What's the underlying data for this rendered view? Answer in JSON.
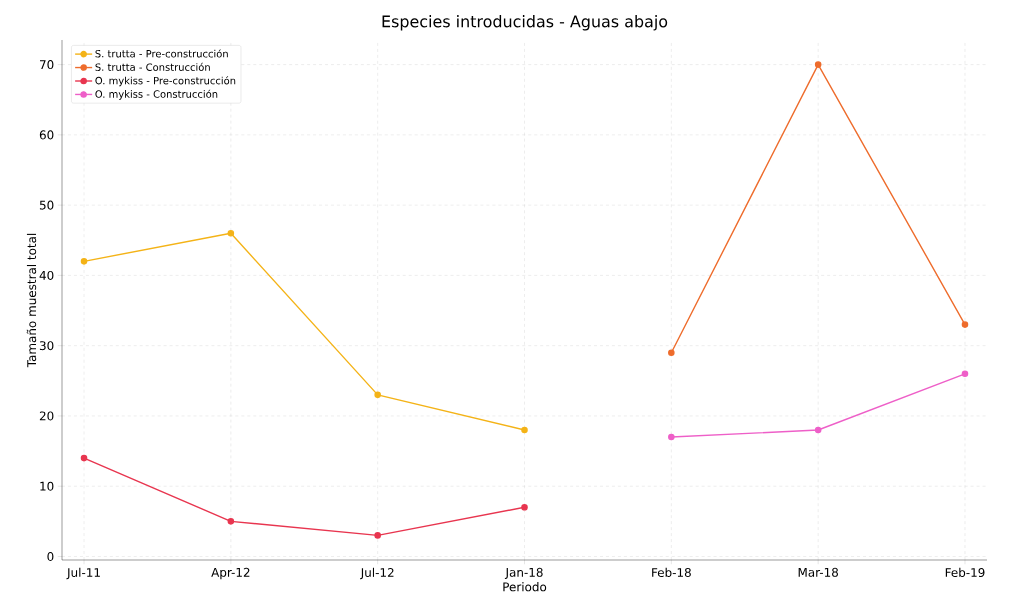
{
  "chart_data": {
    "type": "line",
    "title": "Especies introducidas - Aguas abajo",
    "xlabel": "Periodo",
    "ylabel": "Tamaño muestral total",
    "categories": [
      "Jul-11",
      "Apr-12",
      "Jul-12",
      "Jan-18",
      "Feb-18",
      "Mar-18",
      "Feb-19"
    ],
    "series": [
      {
        "name": "S. trutta - Pre-construcción",
        "color": "#f4b317",
        "values": [
          42,
          46,
          23,
          18,
          null,
          null,
          null
        ]
      },
      {
        "name": "S. trutta - Construcción",
        "color": "#ee6c2c",
        "values": [
          null,
          null,
          null,
          null,
          29,
          70,
          33
        ]
      },
      {
        "name": "O. mykiss - Pre-construcción",
        "color": "#e8354f",
        "values": [
          14,
          5,
          3,
          7,
          null,
          null,
          null
        ]
      },
      {
        "name": "O. mykiss - Construcción",
        "color": "#ee5fc8",
        "values": [
          null,
          null,
          null,
          null,
          17,
          18,
          26
        ]
      }
    ],
    "ylim": [
      -0.5,
      73.5
    ],
    "yticks": [
      0,
      10,
      20,
      30,
      40,
      50,
      60,
      70
    ],
    "grid": true,
    "legend": "top left",
    "marker": "circle",
    "line_style": "solid"
  }
}
